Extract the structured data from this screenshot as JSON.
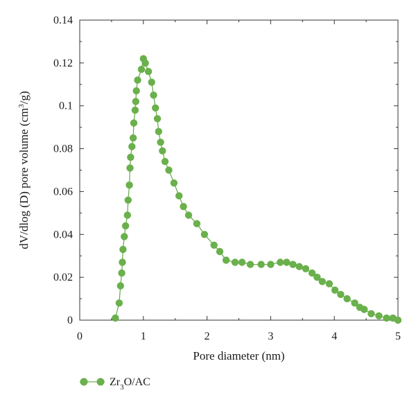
{
  "chart_data": {
    "type": "line",
    "xlabel": "Pore diameter (nm)",
    "ylabel": {
      "before": "dV/dlog (D) pore volume (cm",
      "sup": "3",
      "after": "/g)"
    },
    "xlim": [
      0,
      5
    ],
    "ylim": [
      0,
      0.14
    ],
    "x_ticks": [
      "0",
      "1",
      "2",
      "3",
      "4",
      "5"
    ],
    "y_ticks": [
      "0",
      "0.02",
      "0.04",
      "0.06",
      "0.08",
      "0.1",
      "0.12",
      "0.14"
    ],
    "grid": false,
    "legend_position": "bottom-left",
    "series": [
      {
        "name": "Zr3O/AC",
        "name_parts": {
          "base": "Zr",
          "sub": "3",
          "rest": "O/AC"
        },
        "color": "#6ab04c",
        "marker": "circle",
        "x": [
          0.56,
          0.62,
          0.64,
          0.66,
          0.67,
          0.68,
          0.7,
          0.72,
          0.75,
          0.76,
          0.78,
          0.79,
          0.8,
          0.82,
          0.84,
          0.85,
          0.87,
          0.88,
          0.89,
          0.91,
          0.97,
          1.0,
          1.03,
          1.08,
          1.13,
          1.16,
          1.19,
          1.22,
          1.24,
          1.27,
          1.3,
          1.34,
          1.4,
          1.48,
          1.56,
          1.63,
          1.71,
          1.84,
          1.96,
          2.11,
          2.2,
          2.3,
          2.44,
          2.55,
          2.68,
          2.85,
          3.0,
          3.15,
          3.25,
          3.35,
          3.45,
          3.55,
          3.65,
          3.73,
          3.81,
          3.92,
          4.01,
          4.1,
          4.2,
          4.32,
          4.4,
          4.47,
          4.58,
          4.7,
          4.82,
          4.92,
          5.0
        ],
        "y": [
          0.001,
          0.008,
          0.016,
          0.022,
          0.027,
          0.033,
          0.039,
          0.044,
          0.049,
          0.056,
          0.063,
          0.071,
          0.076,
          0.081,
          0.085,
          0.092,
          0.098,
          0.102,
          0.107,
          0.112,
          0.117,
          0.122,
          0.12,
          0.116,
          0.111,
          0.105,
          0.099,
          0.094,
          0.088,
          0.083,
          0.079,
          0.074,
          0.07,
          0.064,
          0.058,
          0.053,
          0.049,
          0.045,
          0.04,
          0.035,
          0.032,
          0.028,
          0.027,
          0.027,
          0.026,
          0.026,
          0.026,
          0.027,
          0.027,
          0.026,
          0.025,
          0.024,
          0.022,
          0.02,
          0.018,
          0.017,
          0.014,
          0.012,
          0.01,
          0.008,
          0.006,
          0.005,
          0.003,
          0.002,
          0.001,
          0.001,
          0.0
        ]
      }
    ]
  }
}
